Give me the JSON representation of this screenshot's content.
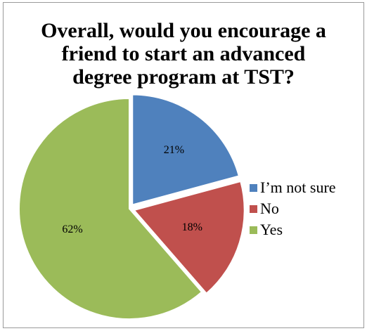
{
  "chart_data": {
    "type": "pie",
    "title": "Overall, would you encourage a friend to start an advanced degree program at TST?",
    "title_lines": [
      "Overall, would you encourage a",
      "friend to start an advanced",
      "degree program at TST?"
    ],
    "slices": [
      {
        "label": "I’m not sure",
        "value": 21,
        "display": "21%",
        "color": "#4f81bd",
        "exploded": true
      },
      {
        "label": "No",
        "value": 18,
        "display": "18%",
        "color": "#c0504d",
        "exploded": true
      },
      {
        "label": "Yes",
        "value": 62,
        "display": "62%",
        "color": "#9bbb59",
        "exploded": false
      }
    ],
    "start_angle": "12 o'clock",
    "direction": "clockwise",
    "legend_position": "right"
  }
}
